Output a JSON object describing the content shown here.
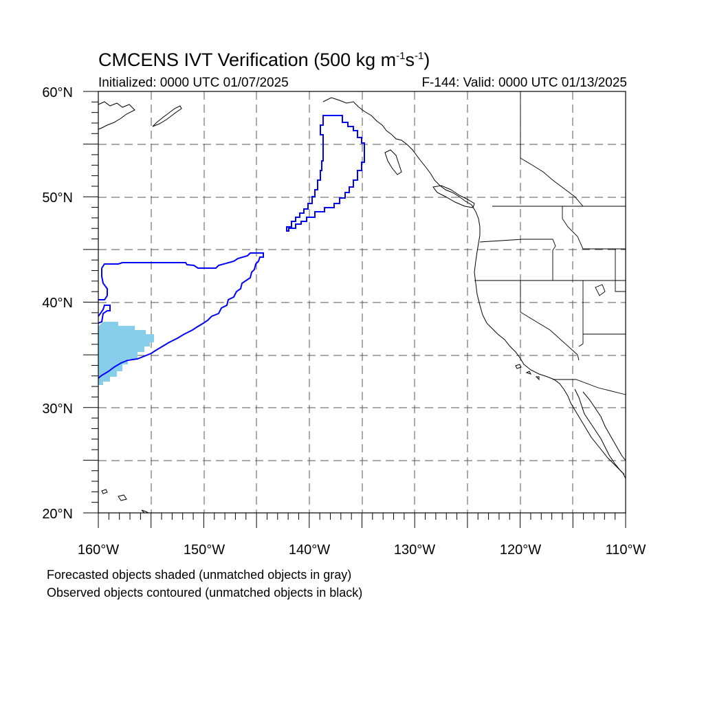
{
  "header": {
    "title_main": "CMCENS IVT Verification (500 kg m",
    "title_exp1": "-1",
    "title_mid": "s",
    "title_exp2": "-1",
    "title_end": ")",
    "initialized": "Initialized: 0000 UTC 01/07/2025",
    "valid": "F-144: Valid: 0000 UTC 01/13/2025"
  },
  "map": {
    "lat_labels": [
      "60°N",
      "50°N",
      "40°N",
      "30°N",
      "20°N"
    ],
    "lon_labels": [
      "160°W",
      "150°W",
      "140°W",
      "130°W",
      "120°W",
      "110°W"
    ],
    "forecast_color": "#87ceeb",
    "observed_color": "#0000ff"
  },
  "legend": {
    "line1": "Forecasted objects shaded (unmatched objects in gray)",
    "line2": "Observed objects contoured (unmatched objects in black)"
  }
}
